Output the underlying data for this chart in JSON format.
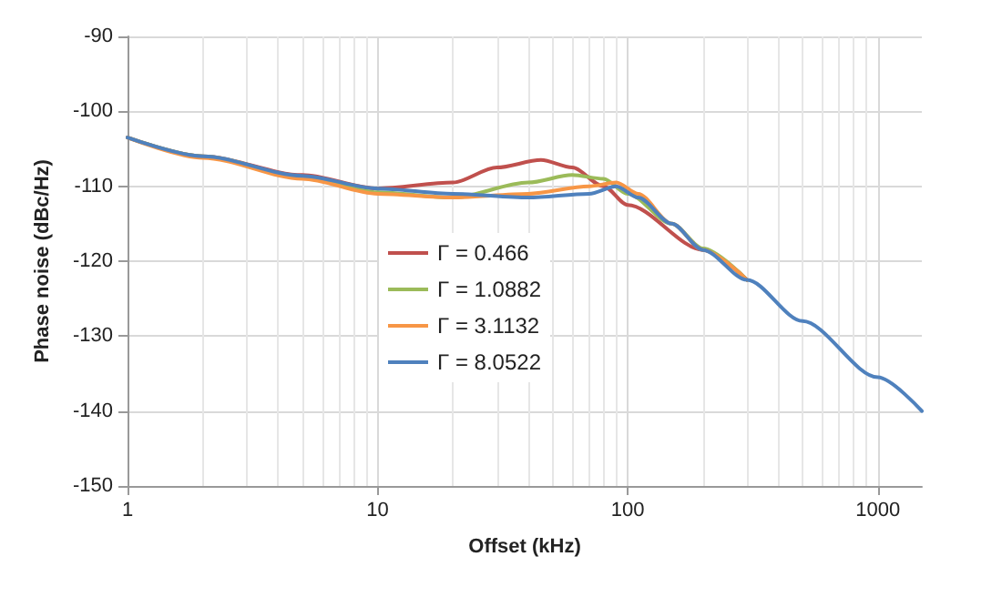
{
  "chart_data": {
    "type": "line",
    "xlabel": "Offset (kHz)",
    "ylabel": "Phase noise (dBc/Hz)",
    "xlim": [
      1,
      1500
    ],
    "xticks": [
      1,
      10,
      100,
      1000
    ],
    "ylim": [
      -150,
      -90
    ],
    "yticks": [
      -150,
      -140,
      -130,
      -120,
      -110,
      -100,
      -90
    ],
    "log": "x",
    "grid": true,
    "legend": "left",
    "marker": "none",
    "line_style": "solid",
    "series": [
      {
        "name": "Γ = 0.466",
        "color": "#c0504d",
        "x": [
          1,
          2,
          5,
          10,
          20,
          30,
          45,
          60,
          80,
          100,
          200,
          300
        ],
        "values": [
          -103.5,
          -106,
          -108.5,
          -110.3,
          -109.5,
          -107.5,
          -106.5,
          -107.5,
          -110,
          -112.5,
          -118.5,
          -122.5
        ]
      },
      {
        "name": "Γ = 1.0882",
        "color": "#9bbb59",
        "x": [
          1,
          2,
          5,
          10,
          20,
          40,
          60,
          80,
          100,
          150,
          200,
          300
        ],
        "values": [
          -103.5,
          -106,
          -108.7,
          -110.8,
          -111.5,
          -109.5,
          -108.5,
          -109,
          -111,
          -115,
          -118.3,
          -122.5
        ]
      },
      {
        "name": "Γ = 3.1132",
        "color": "#f79646",
        "x": [
          1,
          2,
          5,
          10,
          20,
          40,
          70,
          90,
          110,
          150,
          200,
          300
        ],
        "values": [
          -103.5,
          -106.2,
          -109,
          -111,
          -111.5,
          -111,
          -110,
          -109.5,
          -111,
          -115,
          -118.5,
          -122.5
        ]
      },
      {
        "name": "Γ = 8.0522",
        "color": "#4f81bd",
        "x": [
          1,
          2,
          5,
          10,
          20,
          40,
          70,
          90,
          110,
          150,
          200,
          300,
          500,
          1000,
          1500
        ],
        "values": [
          -103.5,
          -106,
          -108.6,
          -110.3,
          -111,
          -111.5,
          -111,
          -110,
          -111.5,
          -115,
          -118.5,
          -122.5,
          -128,
          -135.5,
          -140
        ]
      }
    ]
  }
}
